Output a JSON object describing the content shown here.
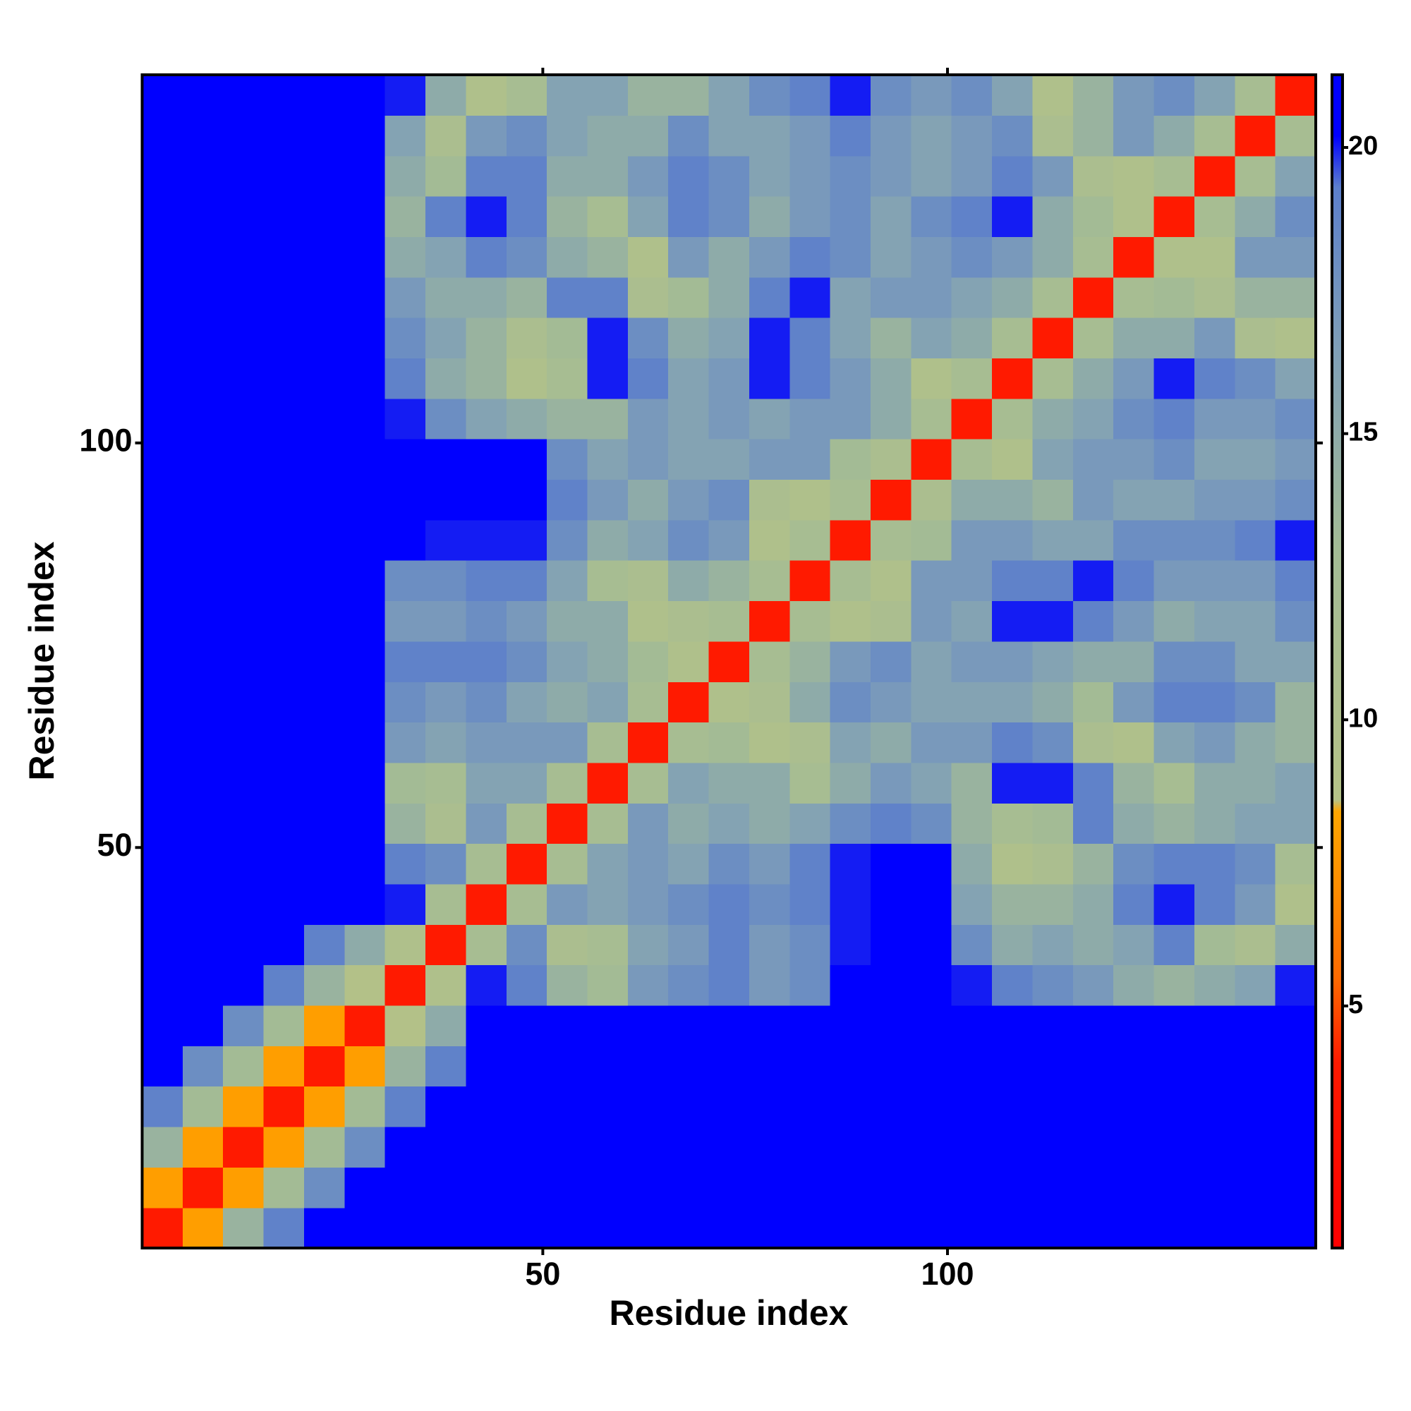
{
  "chart_data": {
    "type": "heatmap",
    "x_label": "Residue index",
    "y_label": "Residue index",
    "xbins": [
      0.5,
      5.5,
      10.5,
      15.5,
      20.5,
      25.5,
      30.5,
      35.5,
      40.5,
      45.5,
      50.5,
      55.5,
      60.5,
      65.5,
      70.5,
      75.5,
      80.5,
      85.5,
      90.5,
      95.5,
      100.5,
      105.5,
      110.5,
      115.5,
      120.5,
      125.5,
      130.5,
      135.5,
      140.5,
      145.5
    ],
    "ybins": [
      0.5,
      5.5,
      10.5,
      15.5,
      20.5,
      25.5,
      30.5,
      35.5,
      40.5,
      45.5,
      50.5,
      55.5,
      60.5,
      65.5,
      70.5,
      75.5,
      80.5,
      85.5,
      90.5,
      95.5,
      100.5,
      105.5,
      110.5,
      115.5,
      120.5,
      125.5,
      130.5,
      135.5,
      140.5,
      145.5
    ],
    "xlim": [
      0.5,
      145.5
    ],
    "ylim": [
      0.5,
      145.5
    ],
    "xticks": [
      50,
      100
    ],
    "yticks": [
      50,
      100
    ],
    "zlim": [
      0.77,
      21.27
    ],
    "zticks": [
      5,
      10,
      15,
      20
    ],
    "colorscale": [
      [
        0.77,
        "#ff0000"
      ],
      [
        4,
        "#ff1a00"
      ],
      [
        5.5,
        "#ff6a00"
      ],
      [
        7,
        "#ff8c00"
      ],
      [
        8.4,
        "#ffa500"
      ],
      [
        8.6,
        "#b5c287"
      ],
      [
        13,
        "#a3bb95"
      ],
      [
        16.5,
        "#7f9fb8"
      ],
      [
        19.3,
        "#5c7fcb"
      ],
      [
        20.2,
        "#0000ff"
      ],
      [
        21.27,
        "#0000ff"
      ]
    ],
    "z": [
      [
        4,
        8,
        14,
        19,
        21,
        21,
        21,
        21,
        21,
        21,
        21,
        21,
        21,
        21,
        21,
        21,
        21,
        21,
        21,
        21,
        21,
        21,
        21,
        21,
        21,
        21,
        21,
        21,
        21
      ],
      [
        8,
        4,
        8,
        13,
        18,
        21,
        21,
        21,
        21,
        21,
        21,
        21,
        21,
        21,
        21,
        21,
        21,
        21,
        21,
        21,
        21,
        21,
        21,
        21,
        21,
        21,
        21,
        21,
        21
      ],
      [
        14,
        8,
        4,
        8,
        13,
        18,
        21,
        21,
        21,
        21,
        21,
        21,
        21,
        21,
        21,
        21,
        21,
        21,
        21,
        21,
        21,
        21,
        21,
        21,
        21,
        21,
        21,
        21,
        21
      ],
      [
        19,
        13,
        8,
        4,
        8,
        13,
        19,
        21,
        21,
        21,
        21,
        21,
        21,
        21,
        21,
        21,
        21,
        21,
        21,
        21,
        21,
        21,
        21,
        21,
        21,
        21,
        21,
        21,
        21
      ],
      [
        21,
        18,
        13,
        8,
        4,
        8,
        14,
        19,
        21,
        21,
        21,
        21,
        21,
        21,
        21,
        21,
        21,
        21,
        21,
        21,
        21,
        21,
        21,
        21,
        21,
        21,
        21,
        21,
        21
      ],
      [
        21,
        21,
        18,
        13,
        8,
        4,
        9,
        15,
        21,
        21,
        21,
        21,
        21,
        21,
        21,
        21,
        21,
        21,
        21,
        21,
        21,
        21,
        21,
        21,
        21,
        21,
        21,
        21,
        21
      ],
      [
        21,
        21,
        21,
        19,
        14,
        9,
        4,
        10,
        20,
        19,
        14,
        13,
        17,
        18,
        19,
        17,
        18,
        21,
        21,
        21,
        20,
        19,
        18,
        17,
        15,
        14,
        15,
        16,
        20
      ],
      [
        21,
        21,
        21,
        21,
        19,
        15,
        10,
        4,
        12,
        18,
        11,
        12,
        16,
        17,
        19,
        17,
        18,
        20,
        21,
        21,
        18,
        15,
        16,
        15,
        16,
        19,
        13,
        11,
        15
      ],
      [
        21,
        21,
        21,
        21,
        21,
        21,
        20,
        12,
        4,
        12,
        17,
        16,
        17,
        18,
        19,
        18,
        19,
        20,
        21,
        21,
        16,
        14,
        14,
        15,
        19,
        20,
        19,
        17,
        10
      ],
      [
        21,
        21,
        21,
        21,
        21,
        21,
        19,
        18,
        12,
        4,
        12,
        16,
        17,
        16,
        18,
        17,
        19,
        20,
        21,
        21,
        15,
        10,
        11,
        14,
        18,
        19,
        19,
        18,
        12
      ],
      [
        21,
        21,
        21,
        21,
        21,
        21,
        14,
        11,
        17,
        12,
        4,
        12,
        17,
        15,
        16,
        15,
        16,
        18,
        19,
        18,
        14,
        12,
        13,
        19,
        15,
        14,
        15,
        16,
        16
      ],
      [
        21,
        21,
        21,
        21,
        21,
        21,
        13,
        12,
        16,
        16,
        12,
        4,
        12,
        16,
        15,
        15,
        12,
        15,
        17,
        16,
        14,
        20,
        20,
        19,
        14,
        12,
        15,
        15,
        16
      ],
      [
        21,
        21,
        21,
        21,
        21,
        21,
        17,
        16,
        17,
        17,
        17,
        12,
        4,
        12,
        13,
        10,
        11,
        16,
        15,
        17,
        17,
        19,
        18,
        11,
        10,
        16,
        17,
        15,
        14
      ],
      [
        21,
        21,
        21,
        21,
        21,
        21,
        18,
        17,
        18,
        16,
        15,
        16,
        12,
        4,
        10,
        11,
        15,
        18,
        17,
        16,
        16,
        16,
        15,
        13,
        17,
        19,
        19,
        18,
        14
      ],
      [
        21,
        21,
        21,
        21,
        21,
        21,
        19,
        19,
        19,
        18,
        16,
        15,
        13,
        10,
        4,
        12,
        14,
        17,
        18,
        16,
        17,
        17,
        16,
        15,
        15,
        18,
        18,
        16,
        16
      ],
      [
        21,
        21,
        21,
        21,
        21,
        21,
        17,
        17,
        18,
        17,
        15,
        15,
        10,
        11,
        12,
        4,
        12,
        10,
        11,
        17,
        16,
        20,
        20,
        19,
        17,
        15,
        16,
        16,
        18
      ],
      [
        21,
        21,
        21,
        21,
        21,
        21,
        18,
        18,
        19,
        19,
        16,
        12,
        11,
        15,
        14,
        12,
        4,
        12,
        10,
        17,
        17,
        19,
        19,
        20,
        19,
        17,
        17,
        17,
        19
      ],
      [
        21,
        21,
        21,
        21,
        21,
        21,
        21,
        20,
        20,
        20,
        18,
        15,
        16,
        18,
        17,
        10,
        12,
        4,
        12,
        13,
        17,
        17,
        16,
        16,
        18,
        18,
        18,
        19,
        20
      ],
      [
        21,
        21,
        21,
        21,
        21,
        21,
        21,
        21,
        21,
        21,
        19,
        17,
        15,
        17,
        18,
        11,
        10,
        12,
        4,
        11,
        15,
        15,
        14,
        17,
        16,
        16,
        17,
        17,
        18
      ],
      [
        21,
        21,
        21,
        21,
        21,
        21,
        21,
        21,
        21,
        21,
        18,
        16,
        17,
        16,
        16,
        17,
        17,
        13,
        11,
        4,
        12,
        10,
        16,
        17,
        17,
        18,
        16,
        16,
        17
      ],
      [
        21,
        21,
        21,
        21,
        21,
        21,
        20,
        18,
        16,
        15,
        14,
        14,
        17,
        16,
        17,
        16,
        17,
        17,
        15,
        12,
        4,
        12,
        15,
        16,
        18,
        19,
        17,
        17,
        18
      ],
      [
        21,
        21,
        21,
        21,
        21,
        21,
        19,
        15,
        14,
        10,
        12,
        20,
        19,
        16,
        17,
        20,
        19,
        17,
        15,
        10,
        12,
        4,
        12,
        15,
        17,
        20,
        19,
        18,
        16
      ],
      [
        21,
        21,
        21,
        21,
        21,
        21,
        18,
        16,
        14,
        11,
        13,
        20,
        18,
        15,
        16,
        20,
        19,
        16,
        14,
        16,
        15,
        12,
        4,
        12,
        15,
        15,
        17,
        11,
        10
      ],
      [
        21,
        21,
        21,
        21,
        21,
        21,
        17,
        15,
        15,
        14,
        19,
        19,
        11,
        13,
        15,
        19,
        20,
        16,
        17,
        17,
        16,
        15,
        12,
        4,
        12,
        13,
        11,
        14,
        14
      ],
      [
        21,
        21,
        21,
        21,
        21,
        21,
        15,
        16,
        19,
        18,
        15,
        14,
        10,
        17,
        15,
        17,
        19,
        18,
        16,
        17,
        18,
        17,
        15,
        12,
        4,
        10,
        10,
        17,
        17
      ],
      [
        21,
        21,
        21,
        21,
        21,
        21,
        14,
        19,
        20,
        19,
        14,
        12,
        16,
        19,
        18,
        15,
        17,
        18,
        16,
        18,
        19,
        20,
        15,
        13,
        10,
        4,
        12,
        15,
        18
      ],
      [
        21,
        21,
        21,
        21,
        21,
        21,
        15,
        13,
        19,
        19,
        15,
        15,
        17,
        19,
        18,
        16,
        17,
        18,
        17,
        16,
        17,
        19,
        17,
        11,
        10,
        12,
        4,
        12,
        16
      ],
      [
        21,
        21,
        21,
        21,
        21,
        21,
        16,
        11,
        17,
        18,
        16,
        15,
        15,
        18,
        16,
        16,
        17,
        19,
        17,
        16,
        17,
        18,
        11,
        14,
        17,
        15,
        12,
        4,
        12
      ],
      [
        21,
        21,
        21,
        21,
        21,
        21,
        20,
        15,
        10,
        12,
        16,
        16,
        14,
        14,
        16,
        18,
        19,
        20,
        18,
        17,
        18,
        16,
        10,
        14,
        17,
        18,
        16,
        12,
        4
      ]
    ]
  }
}
